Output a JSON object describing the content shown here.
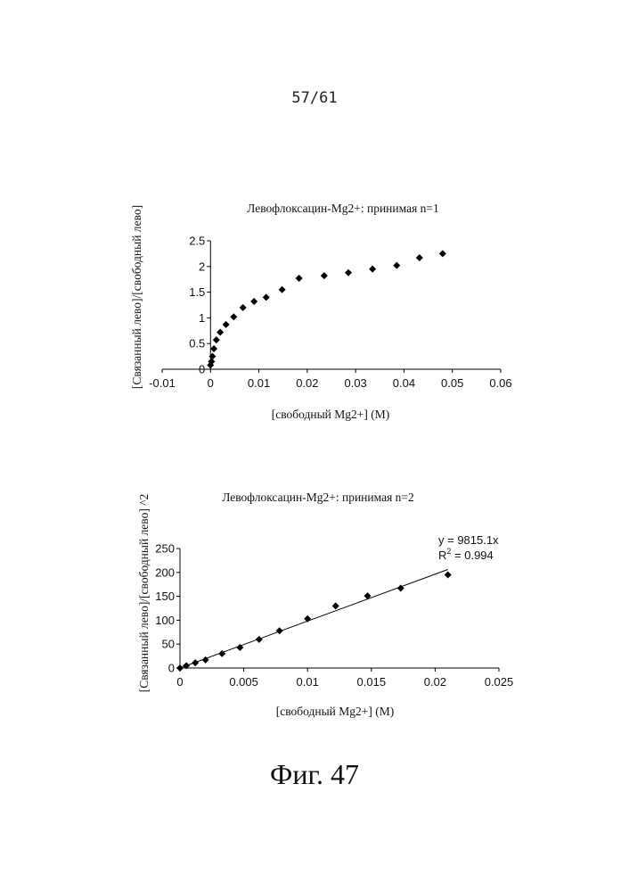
{
  "page": {
    "number": "57/61",
    "caption": "Фиг. 47"
  },
  "chart_data": [
    {
      "type": "scatter",
      "title": "Левофлоксацин-Mg2+: принимая n=1",
      "xlabel": "[свободный Mg2+] (М)",
      "ylabel": "[Связанный лево]/[свободный лево]",
      "xlim": [
        -0.01,
        0.06
      ],
      "ylim": [
        0,
        2.5
      ],
      "x_ticks": [
        "-0.01",
        "0",
        "0.01",
        "0.02",
        "0.03",
        "0.04",
        "0.05",
        "0.06"
      ],
      "y_ticks": [
        "0",
        "0.5",
        "1",
        "1.5",
        "2",
        "2.5"
      ],
      "grid": false,
      "legend": "none",
      "marker": "diamond",
      "color": "#000000",
      "x": [
        0.0,
        0.0002,
        0.0004,
        0.0007,
        0.0012,
        0.002,
        0.0032,
        0.0048,
        0.0067,
        0.009,
        0.0115,
        0.0148,
        0.0183,
        0.0235,
        0.0285,
        0.0335,
        0.0385,
        0.0432,
        0.048
      ],
      "y": [
        0.08,
        0.15,
        0.25,
        0.4,
        0.57,
        0.72,
        0.87,
        1.02,
        1.2,
        1.32,
        1.4,
        1.55,
        1.77,
        1.82,
        1.88,
        1.95,
        2.02,
        2.17,
        2.25
      ]
    },
    {
      "type": "scatter",
      "title": "Левофлоксацин-Mg2+: принимая n=2",
      "xlabel": "[свободный Mg2+] (М)",
      "ylabel": "[Связанный лево]/[свободный лево] ^2",
      "xlim": [
        0,
        0.025
      ],
      "ylim": [
        0,
        250
      ],
      "x_ticks": [
        "0",
        "0.005",
        "0.01",
        "0.015",
        "0.02",
        "0.025"
      ],
      "y_ticks": [
        "0",
        "50",
        "100",
        "150",
        "200",
        "250"
      ],
      "grid": false,
      "legend": "none",
      "marker": "diamond",
      "color": "#000000",
      "x": [
        0.0,
        0.0005,
        0.0012,
        0.002,
        0.0033,
        0.0047,
        0.0062,
        0.0078,
        0.01,
        0.0122,
        0.0147,
        0.0173,
        0.021
      ],
      "y": [
        0,
        5,
        11,
        17,
        30,
        43,
        60,
        78,
        103,
        130,
        151,
        167,
        195
      ],
      "trendline": {
        "type": "linear",
        "slope": 9815.1,
        "x_range": [
          0,
          0.021
        ],
        "equation": "y = 9815.1x",
        "r2_label": "R",
        "r2_sup": "2",
        "r2_value": " = 0.994"
      }
    }
  ]
}
